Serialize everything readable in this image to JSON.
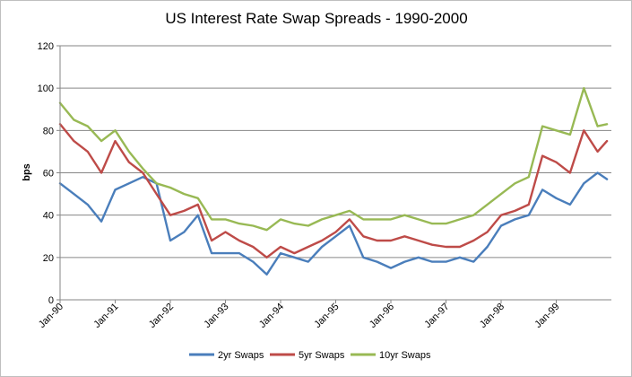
{
  "chart_data": {
    "type": "line",
    "title": "US Interest Rate Swap Spreads - 1990-2000",
    "xlabel": "",
    "ylabel": "bps",
    "ylim": [
      0,
      120
    ],
    "y_ticks": [
      0,
      20,
      40,
      60,
      80,
      100,
      120
    ],
    "x_ticks": [
      "Jan-90",
      "Jan-91",
      "Jan-92",
      "Jan-93",
      "Jan-94",
      "Jan-95",
      "Jan-96",
      "Jan-97",
      "Jan-98",
      "Jan-99"
    ],
    "xlim": [
      1990.0,
      2000.0
    ],
    "grid": true,
    "legend_position": "bottom",
    "x": [
      1990.0,
      1990.25,
      1990.5,
      1990.75,
      1991.0,
      1991.25,
      1991.5,
      1991.75,
      1992.0,
      1992.25,
      1992.5,
      1992.75,
      1993.0,
      1993.25,
      1993.5,
      1993.75,
      1994.0,
      1994.25,
      1994.5,
      1994.75,
      1995.0,
      1995.25,
      1995.5,
      1995.75,
      1996.0,
      1996.25,
      1996.5,
      1996.75,
      1997.0,
      1997.25,
      1997.5,
      1997.75,
      1998.0,
      1998.25,
      1998.5,
      1998.75,
      1999.0,
      1999.25,
      1999.5,
      1999.75,
      1999.92
    ],
    "series": [
      {
        "name": "2yr Swaps",
        "color": "#4a7ebb",
        "values": [
          55,
          50,
          45,
          37,
          52,
          55,
          58,
          55,
          28,
          32,
          40,
          22,
          22,
          22,
          18,
          12,
          22,
          20,
          18,
          25,
          30,
          35,
          20,
          18,
          15,
          18,
          20,
          18,
          18,
          20,
          18,
          25,
          35,
          38,
          40,
          52,
          48,
          45,
          55,
          60,
          57
        ]
      },
      {
        "name": "5yr Swaps",
        "color": "#be4b48",
        "values": [
          83,
          75,
          70,
          60,
          75,
          65,
          60,
          50,
          40,
          42,
          45,
          28,
          32,
          28,
          25,
          20,
          25,
          22,
          25,
          28,
          32,
          38,
          30,
          28,
          28,
          30,
          28,
          26,
          25,
          25,
          28,
          32,
          40,
          42,
          45,
          68,
          65,
          60,
          80,
          70,
          75
        ]
      },
      {
        "name": "10yr Swaps",
        "color": "#98b954",
        "values": [
          93,
          85,
          82,
          75,
          80,
          70,
          62,
          55,
          53,
          50,
          48,
          38,
          38,
          36,
          35,
          33,
          38,
          36,
          35,
          38,
          40,
          42,
          38,
          38,
          38,
          40,
          38,
          36,
          36,
          38,
          40,
          45,
          50,
          55,
          58,
          82,
          80,
          78,
          100,
          82,
          83
        ]
      }
    ]
  }
}
